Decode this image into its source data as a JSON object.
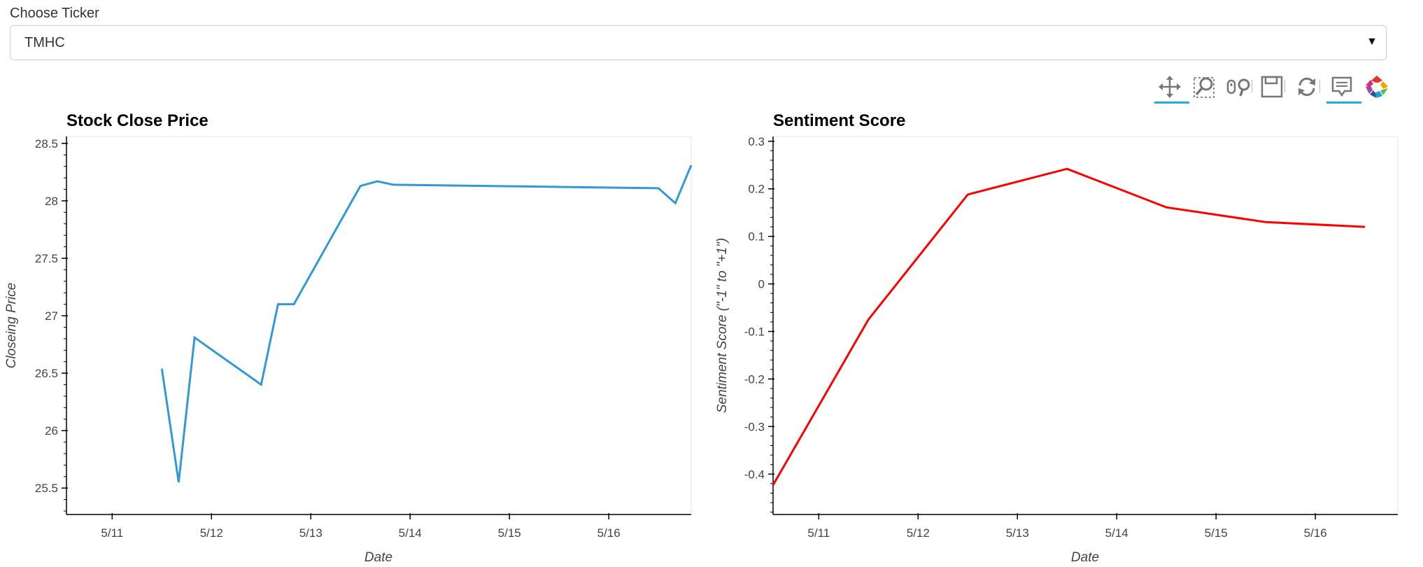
{
  "ticker": {
    "label": "Choose Ticker",
    "value": "TMHC"
  },
  "toolbar": {
    "tools": [
      {
        "name": "pan-tool",
        "active": true
      },
      {
        "name": "box-zoom-tool",
        "active": false
      },
      {
        "name": "wheel-zoom-tool",
        "active": false
      },
      {
        "name": "save-tool",
        "active": false
      },
      {
        "name": "reset-tool",
        "active": false
      },
      {
        "name": "hover-tool",
        "active": true
      },
      {
        "name": "bokeh-logo",
        "active": false
      }
    ],
    "accent": "#26aae1"
  },
  "chart_data": [
    {
      "type": "line",
      "title": "Stock Close Price",
      "xlabel": "Date",
      "ylabel": "Closeing Price",
      "color": "#3399d6",
      "xlim": [
        10.54,
        16.83
      ],
      "ylim": [
        25.27,
        28.56
      ],
      "xticks": [
        11,
        12,
        13,
        14,
        15,
        16
      ],
      "xtick_labels": [
        "5/11",
        "5/12",
        "5/13",
        "5/14",
        "5/15",
        "5/16"
      ],
      "yticks": [
        25.5,
        26,
        26.5,
        27,
        27.5,
        28,
        28.5
      ],
      "ytick_labels": [
        "25.5",
        "26",
        "26.5",
        "27",
        "27.5",
        "28",
        "28.5"
      ],
      "x": [
        11.5,
        11.67,
        11.83,
        12.5,
        12.67,
        12.83,
        13.5,
        13.67,
        13.83,
        16.5,
        16.67,
        16.83
      ],
      "y": [
        26.54,
        25.55,
        26.81,
        26.4,
        27.1,
        27.1,
        28.13,
        28.17,
        28.14,
        28.11,
        27.98,
        28.31
      ]
    },
    {
      "type": "line",
      "title": "Sentiment Score",
      "xlabel": "Date",
      "ylabel": "Sentiment Score (\"-1\" to \"+1\")",
      "color": "#ff0000",
      "xlim": [
        10.54,
        16.83
      ],
      "ylim": [
        -0.485,
        0.31
      ],
      "xticks": [
        11,
        12,
        13,
        14,
        15,
        16
      ],
      "xtick_labels": [
        "5/11",
        "5/12",
        "5/13",
        "5/14",
        "5/15",
        "5/16"
      ],
      "yticks": [
        -0.4,
        -0.3,
        -0.2,
        -0.1,
        0,
        0.1,
        0.2,
        0.3
      ],
      "ytick_labels": [
        "-0.4",
        "-0.3",
        "-0.2",
        "-0.1",
        "0",
        "0.1",
        "0.2",
        "0.3"
      ],
      "x": [
        10.54,
        11.5,
        12.5,
        13.5,
        14.5,
        15.5,
        16.5
      ],
      "y": [
        -0.423,
        -0.075,
        0.188,
        0.242,
        0.161,
        0.13,
        0.12
      ]
    }
  ]
}
